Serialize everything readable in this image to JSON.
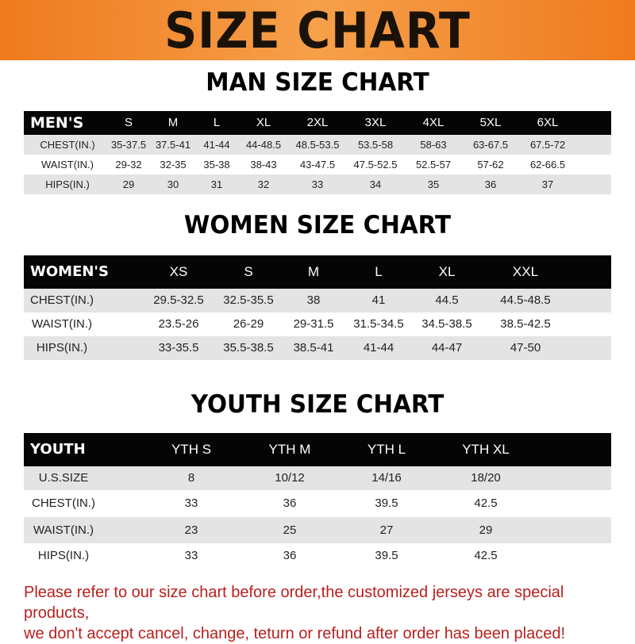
{
  "banner_title": "SIZE CHART",
  "colors": {
    "banner": "#f08a2c",
    "header_row": "#050505",
    "stripe": "#e4e4e4",
    "notice": "#b8201f"
  },
  "men": {
    "title": "MAN SIZE CHART",
    "header": [
      "MEN'S",
      "S",
      "M",
      "L",
      "XL",
      "2XL",
      "3XL",
      "4XL",
      "5XL",
      "6XL"
    ],
    "rows": [
      [
        "CHEST(IN.)",
        "35-37.5",
        "37.5-41",
        "41-44",
        "44-48.5",
        "48.5-53.5",
        "53.5-58",
        "58-63",
        "63-67.5",
        "67.5-72"
      ],
      [
        "WAIST(IN.)",
        "29-32",
        "32-35",
        "35-38",
        "38-43",
        "43-47.5",
        "47.5-52.5",
        "52.5-57",
        "57-62",
        "62-66.5"
      ],
      [
        "HIPS(IN.)",
        "29",
        "30",
        "31",
        "32",
        "33",
        "34",
        "35",
        "36",
        "37"
      ]
    ]
  },
  "women": {
    "title": "WOMEN SIZE CHART",
    "header": [
      "WOMEN'S",
      "XS",
      "S",
      "M",
      "L",
      "XL",
      "XXL"
    ],
    "rows": [
      [
        "CHEST(IN.)",
        "29.5-32.5",
        "32.5-35.5",
        "38",
        "41",
        "44.5",
        "44.5-48.5"
      ],
      [
        "WAIST(IN.)",
        "23.5-26",
        "26-29",
        "29-31.5",
        "31.5-34.5",
        "34.5-38.5",
        "38.5-42.5"
      ],
      [
        "HIPS(IN.)",
        "33-35.5",
        "35.5-38.5",
        "38.5-41",
        "41-44",
        "44-47",
        "47-50"
      ]
    ]
  },
  "youth": {
    "title": "YOUTH SIZE CHART",
    "header": [
      "YOUTH",
      "YTH S",
      "YTH M",
      "YTH L",
      "YTH XL"
    ],
    "rows": [
      [
        "U.S.SIZE",
        "8",
        "10/12",
        "14/16",
        "18/20"
      ],
      [
        "CHEST(IN.)",
        "33",
        "36",
        "39.5",
        "42.5"
      ],
      [
        "WAIST(IN.)",
        "23",
        "25",
        "27",
        "29"
      ],
      [
        "HIPS(IN.)",
        "33",
        "36",
        "39.5",
        "42.5"
      ]
    ]
  },
  "notice": {
    "line1": "Please refer to our size chart before order,the customized jerseys are special products,",
    "line2": "we don't accept cancel, change, teturn or refund after order has been placed!"
  }
}
